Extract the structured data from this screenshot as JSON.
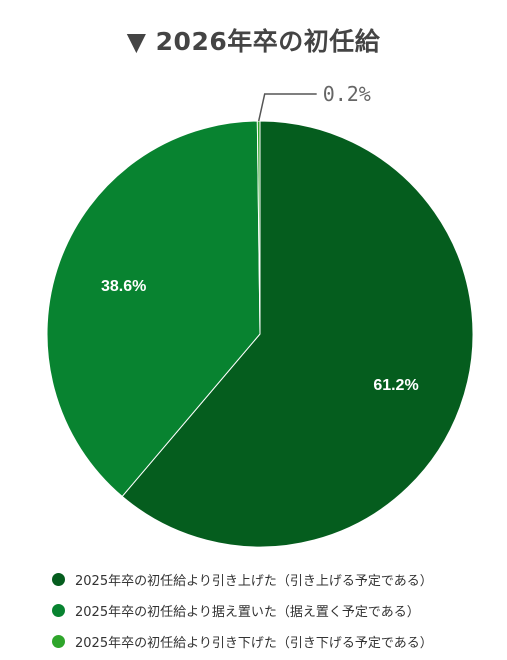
{
  "title": "▼ 2026年卒の初任給",
  "chart_data": {
    "type": "pie",
    "slices": [
      {
        "label": "2025年卒の初任給より引き上げた（引き上げる予定である）",
        "value": 61.2,
        "value_label": "61.2%",
        "color": "#055d1e"
      },
      {
        "label": "2025年卒の初任給より据え置いた（据え置く予定である）",
        "value": 38.6,
        "value_label": "38.6%",
        "color": "#088330"
      },
      {
        "label": "2025年卒の初任給より引き下げた（引き下げる予定である）",
        "value": 0.2,
        "value_label": "0.2%",
        "color": "#2ea52b"
      }
    ],
    "legend_position": "bottom"
  }
}
